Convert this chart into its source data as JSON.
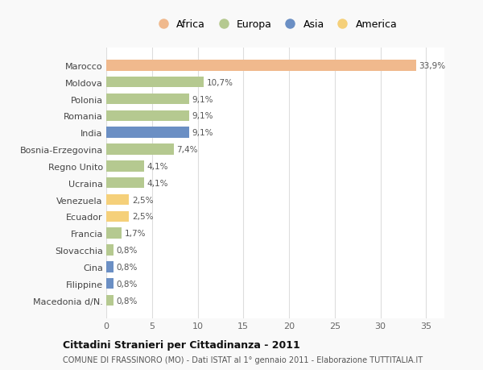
{
  "countries": [
    "Marocco",
    "Moldova",
    "Polonia",
    "Romania",
    "India",
    "Bosnia-Erzegovina",
    "Regno Unito",
    "Ucraina",
    "Venezuela",
    "Ecuador",
    "Francia",
    "Slovacchia",
    "Cina",
    "Filippine",
    "Macedonia d/N."
  ],
  "values": [
    33.9,
    10.7,
    9.1,
    9.1,
    9.1,
    7.4,
    4.1,
    4.1,
    2.5,
    2.5,
    1.7,
    0.8,
    0.8,
    0.8,
    0.8
  ],
  "labels": [
    "33,9%",
    "10,7%",
    "9,1%",
    "9,1%",
    "9,1%",
    "7,4%",
    "4,1%",
    "4,1%",
    "2,5%",
    "2,5%",
    "1,7%",
    "0,8%",
    "0,8%",
    "0,8%",
    "0,8%"
  ],
  "continents": [
    "Africa",
    "Europa",
    "Europa",
    "Europa",
    "Asia",
    "Europa",
    "Europa",
    "Europa",
    "America",
    "America",
    "Europa",
    "Europa",
    "Asia",
    "Asia",
    "Europa"
  ],
  "colors": {
    "Africa": "#F0B98D",
    "Europa": "#B5C990",
    "Asia": "#6B8FC4",
    "America": "#F5D07A"
  },
  "legend_order": [
    "Africa",
    "Europa",
    "Asia",
    "America"
  ],
  "xlim": [
    0,
    37
  ],
  "xticks": [
    0,
    5,
    10,
    15,
    20,
    25,
    30,
    35
  ],
  "title": "Cittadini Stranieri per Cittadinanza - 2011",
  "subtitle": "COMUNE DI FRASSINORO (MO) - Dati ISTAT al 1° gennaio 2011 - Elaborazione TUTTITALIA.IT",
  "background_color": "#f9f9f9",
  "bar_background": "#ffffff",
  "grid_color": "#dddddd"
}
